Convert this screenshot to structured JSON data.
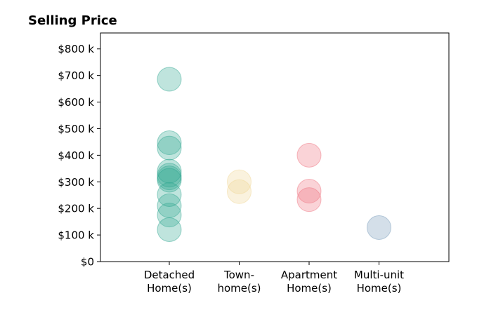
{
  "chart_data": {
    "type": "scatter",
    "title": "Selling Price",
    "xlabel": "",
    "ylabel": "",
    "categories": [
      [
        "Detached",
        "Home(s)"
      ],
      [
        "Town-",
        "home(s)"
      ],
      [
        "Apartment",
        "Home(s)"
      ],
      [
        "Multi-unit",
        "Home(s)"
      ]
    ],
    "y_ticks": [
      0,
      100000,
      200000,
      300000,
      400000,
      500000,
      600000,
      700000,
      800000
    ],
    "y_tick_labels": [
      "$0",
      "$100 k",
      "$200 k",
      "$300 k",
      "$400 k",
      "$500 k",
      "$600 k",
      "$700 k",
      "$800 k"
    ],
    "ylim": [
      0,
      860000
    ],
    "grid": false,
    "legend": "none",
    "series": [
      {
        "color": "#2ca58d",
        "values": [
          686000,
          447000,
          427000,
          340000,
          325000,
          315000,
          306000,
          252000,
          210000,
          175000,
          120000
        ]
      },
      {
        "color": "#f0d491",
        "values": [
          300000,
          263000
        ]
      },
      {
        "color": "#ee6d79",
        "values": [
          400000,
          265000,
          233000
        ]
      },
      {
        "color": "#6f95b5",
        "values": [
          128000
        ]
      }
    ]
  }
}
